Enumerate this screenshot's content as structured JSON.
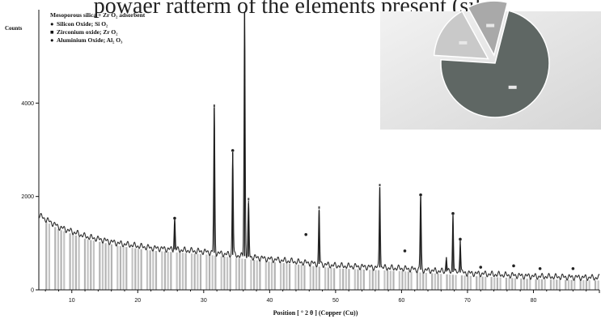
{
  "header_text": "powaer ratterm of the elements present (silica",
  "chart_data": {
    "type": "line",
    "title": "Mesoporous silica + Zr O₂ adsorbent",
    "xlabel": "Position [ ° 2 θ ]  (Copper (Cu))",
    "ylabel": "Counts",
    "xlim": [
      5,
      90
    ],
    "ylim": [
      0,
      6000
    ],
    "x_ticks": [
      10,
      20,
      30,
      40,
      50,
      60,
      70,
      80
    ],
    "y_ticks": [
      0,
      2000,
      4000
    ],
    "legend": [
      {
        "symbol": "●",
        "label": "Silicon Oxide;  Si O₂"
      },
      {
        "symbol": "■",
        "label": "Zirconium oxide;  Zr O₂"
      },
      {
        "symbol": "●",
        "label": "Aluminium Oxide;  Al₂ O₃"
      }
    ],
    "baseline": [
      [
        5,
        1600
      ],
      [
        8,
        1350
      ],
      [
        12,
        1150
      ],
      [
        17,
        1000
      ],
      [
        22,
        900
      ],
      [
        30,
        820
      ],
      [
        40,
        660
      ],
      [
        50,
        520
      ],
      [
        60,
        460
      ],
      [
        70,
        360
      ],
      [
        80,
        290
      ],
      [
        90,
        260
      ]
    ],
    "peaks": [
      {
        "x": 25.6,
        "y": 1500
      },
      {
        "x": 31.6,
        "y": 3900
      },
      {
        "x": 34.4,
        "y": 2950
      },
      {
        "x": 36.2,
        "y": 5950
      },
      {
        "x": 36.8,
        "y": 1850
      },
      {
        "x": 47.5,
        "y": 1700
      },
      {
        "x": 56.7,
        "y": 2200
      },
      {
        "x": 62.9,
        "y": 2000
      },
      {
        "x": 66.8,
        "y": 700
      },
      {
        "x": 67.8,
        "y": 1600
      },
      {
        "x": 68.9,
        "y": 1050
      }
    ],
    "markers": [
      {
        "x": 25.6,
        "y": 1500,
        "kind": "dot"
      },
      {
        "x": 31.6,
        "y": 3900,
        "kind": "tick"
      },
      {
        "x": 34.4,
        "y": 2950,
        "kind": "dot"
      },
      {
        "x": 36.8,
        "y": 1900,
        "kind": "tick"
      },
      {
        "x": 47.5,
        "y": 1720,
        "kind": "tick"
      },
      {
        "x": 56.7,
        "y": 2200,
        "kind": "tick"
      },
      {
        "x": 62.9,
        "y": 2000,
        "kind": "dot"
      },
      {
        "x": 67.8,
        "y": 1600,
        "kind": "dot"
      },
      {
        "x": 68.9,
        "y": 1050,
        "kind": "dot"
      },
      {
        "x": 45.5,
        "y": 1150,
        "kind": "dot"
      },
      {
        "x": 60.5,
        "y": 800,
        "kind": "dot"
      },
      {
        "x": 72,
        "y": 450,
        "kind": "dot"
      },
      {
        "x": 77,
        "y": 480,
        "kind": "dot"
      },
      {
        "x": 81,
        "y": 420,
        "kind": "dot"
      },
      {
        "x": 86,
        "y": 420,
        "kind": "dot"
      }
    ],
    "pie": {
      "slices": [
        {
          "label": "",
          "value": 72,
          "color": "#5f6764"
        },
        {
          "label": "",
          "value": 16,
          "color": "#c9c9c9"
        },
        {
          "label": "",
          "value": 12,
          "color": "#a9a9a9"
        }
      ]
    }
  }
}
